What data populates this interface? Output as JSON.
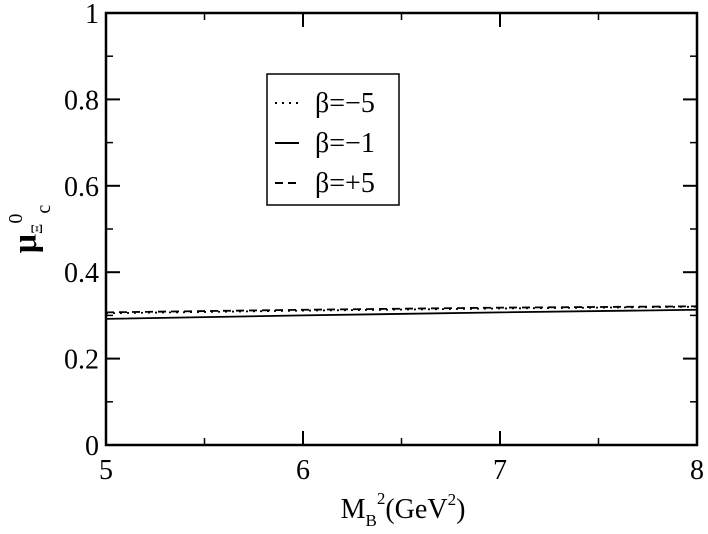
{
  "chart_data": {
    "type": "line",
    "title": "",
    "xlabel": {
      "main": "M",
      "sub": "B",
      "sup": "2",
      "rest_open": "(GeV",
      "rest_sup": "2",
      "rest_close": ")"
    },
    "ylabel": {
      "mu": "μ",
      "xi": "Ξ",
      "sup": "0",
      "sub": "c"
    },
    "xlim": [
      5,
      8
    ],
    "ylim": [
      0,
      1
    ],
    "x_ticks": [
      5,
      6,
      7,
      8
    ],
    "x_tick_labels": [
      "5",
      "6",
      "7",
      "8"
    ],
    "y_ticks": [
      0,
      0.2,
      0.4,
      0.6,
      0.8,
      1
    ],
    "y_tick_labels": [
      "0",
      "0.2",
      "0.4",
      "0.6",
      "0.8",
      "1"
    ],
    "grid": false,
    "legend_position": "upper-center-left",
    "series": [
      {
        "name": "β=−5",
        "style": "dotted",
        "x": [
          5,
          6,
          7,
          8
        ],
        "y": [
          0.305,
          0.311,
          0.316,
          0.32
        ]
      },
      {
        "name": "β=−1",
        "style": "solid",
        "x": [
          5,
          6,
          7,
          8
        ],
        "y": [
          0.292,
          0.3,
          0.307,
          0.313
        ]
      },
      {
        "name": "β=+5",
        "style": "dashed",
        "x": [
          5,
          6,
          7,
          8
        ],
        "y": [
          0.307,
          0.313,
          0.318,
          0.321
        ]
      }
    ],
    "colors": {
      "axis": "#000000",
      "line": "#000000",
      "background": "#ffffff"
    }
  }
}
